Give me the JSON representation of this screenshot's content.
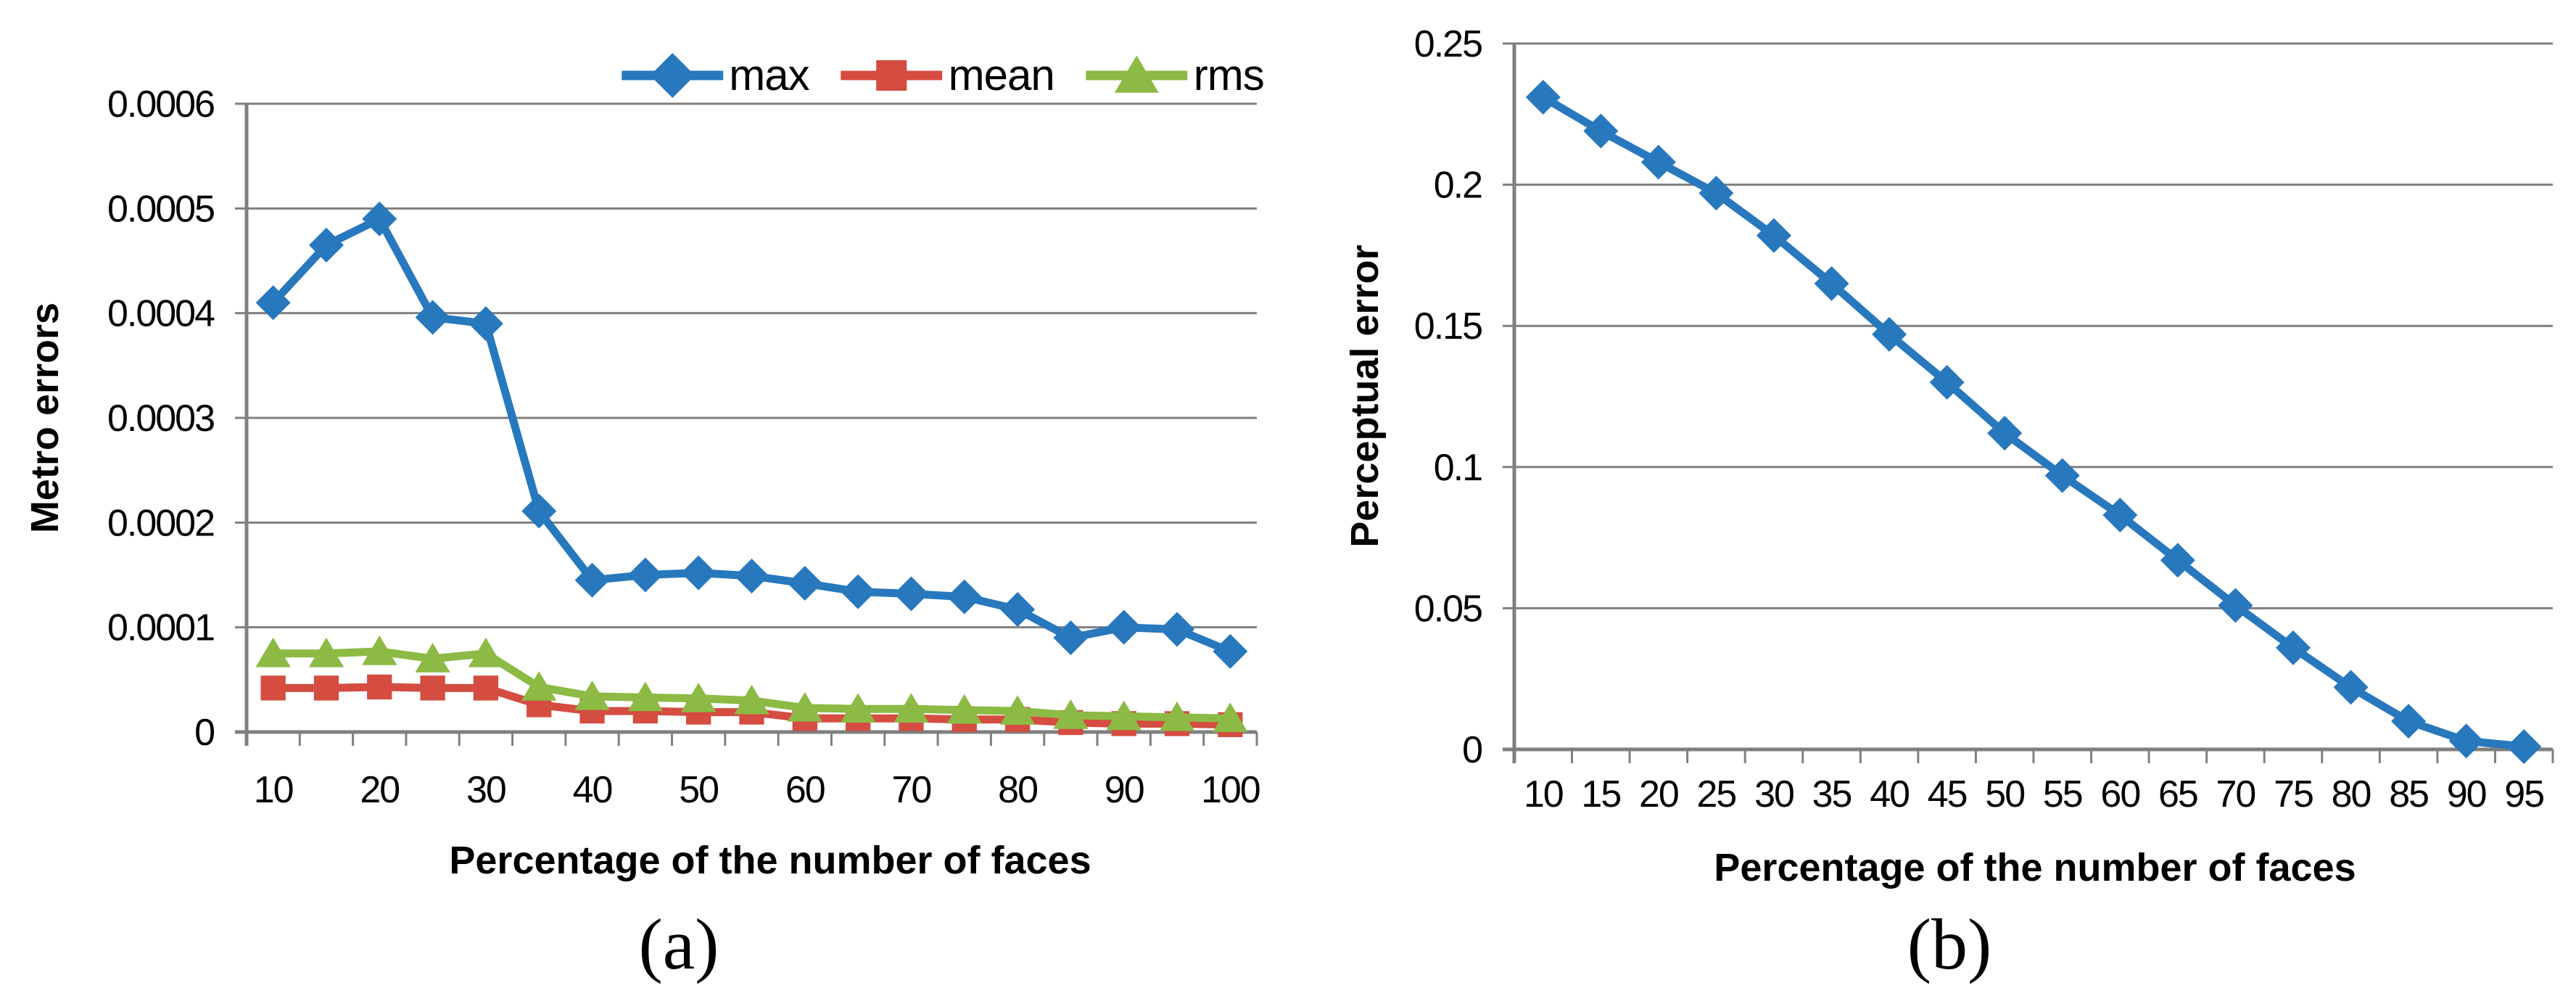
{
  "figure": {
    "caption_a": "(a)",
    "caption_b": "(b)"
  },
  "colors": {
    "max": "#2878BE",
    "mean": "#D54C41",
    "rms": "#8CBA44",
    "grid": "#7F7F7F",
    "text": "#000000",
    "background": "#FFFFFF"
  },
  "legend": {
    "position": "top-center"
  },
  "chart_data": [
    {
      "id": "a",
      "type": "line",
      "title": "",
      "xlabel": "Percentage of the number of faces",
      "ylabel": "Metro errors",
      "ylim": [
        0,
        0.0006
      ],
      "grid": true,
      "legend_position": "top",
      "categories": [
        10,
        15,
        20,
        25,
        30,
        35,
        40,
        45,
        50,
        55,
        60,
        65,
        70,
        75,
        80,
        85,
        90,
        95,
        100
      ],
      "x_tick_labels": [
        "10",
        "",
        "20",
        "",
        "30",
        "",
        "40",
        "",
        "50",
        "",
        "60",
        "",
        "70",
        "",
        "80",
        "",
        "90",
        "",
        "100"
      ],
      "y_ticks": [
        0,
        0.0001,
        0.0002,
        0.0003,
        0.0004,
        0.0005,
        0.0006
      ],
      "y_tick_labels": [
        "0",
        "0.0001",
        "0.0002",
        "0.0003",
        "0.0004",
        "0.0005",
        "0.0006"
      ],
      "series": [
        {
          "name": "max",
          "marker": "diamond",
          "color": "#2878BE",
          "values": [
            0.00041,
            0.000465,
            0.00049,
            0.000396,
            0.00039,
            0.000211,
            0.000145,
            0.00015,
            0.000152,
            0.000149,
            0.000142,
            0.000134,
            0.000132,
            0.000129,
            0.000117,
            9e-05,
            0.0001,
            9.8e-05,
            7.7e-05
          ]
        },
        {
          "name": "mean",
          "marker": "square",
          "color": "#D54C41",
          "values": [
            4.2e-05,
            4.2e-05,
            4.3e-05,
            4.2e-05,
            4.2e-05,
            2.6e-05,
            2e-05,
            2e-05,
            1.9e-05,
            1.9e-05,
            1.3e-05,
            1.3e-05,
            1.3e-05,
            1.2e-05,
            1.2e-05,
            9e-06,
            8e-06,
            8e-06,
            7e-06
          ]
        },
        {
          "name": "rms",
          "marker": "triangle",
          "color": "#8CBA44",
          "values": [
            7.5e-05,
            7.5e-05,
            7.7e-05,
            7e-05,
            7.5e-05,
            4.3e-05,
            3.4e-05,
            3.3e-05,
            3.2e-05,
            3e-05,
            2.3e-05,
            2.2e-05,
            2.2e-05,
            2.1e-05,
            2e-05,
            1.6e-05,
            1.5e-05,
            1.4e-05,
            1.3e-05
          ]
        }
      ]
    },
    {
      "id": "b",
      "type": "line",
      "title": "",
      "xlabel": "Percentage of the number of faces",
      "ylabel": "Perceptual error",
      "ylim": [
        0,
        0.25
      ],
      "grid": true,
      "legend_position": "none",
      "categories": [
        10,
        15,
        20,
        25,
        30,
        35,
        40,
        45,
        50,
        55,
        60,
        65,
        70,
        75,
        80,
        85,
        90,
        95
      ],
      "x_tick_labels": [
        "10",
        "15",
        "20",
        "25",
        "30",
        "35",
        "40",
        "45",
        "50",
        "55",
        "60",
        "65",
        "70",
        "75",
        "80",
        "85",
        "90",
        "95"
      ],
      "y_ticks": [
        0,
        0.05,
        0.1,
        0.15,
        0.2,
        0.25
      ],
      "y_tick_labels": [
        "0",
        "0.05",
        "0.1",
        "0.15",
        "0.2",
        "0.25"
      ],
      "series": [
        {
          "name": "Perceptual error",
          "marker": "diamond",
          "color": "#2878BE",
          "values": [
            0.231,
            0.219,
            0.208,
            0.197,
            0.182,
            0.165,
            0.147,
            0.13,
            0.112,
            0.097,
            0.083,
            0.067,
            0.051,
            0.036,
            0.022,
            0.01,
            0.003,
            0.001
          ]
        }
      ]
    }
  ]
}
